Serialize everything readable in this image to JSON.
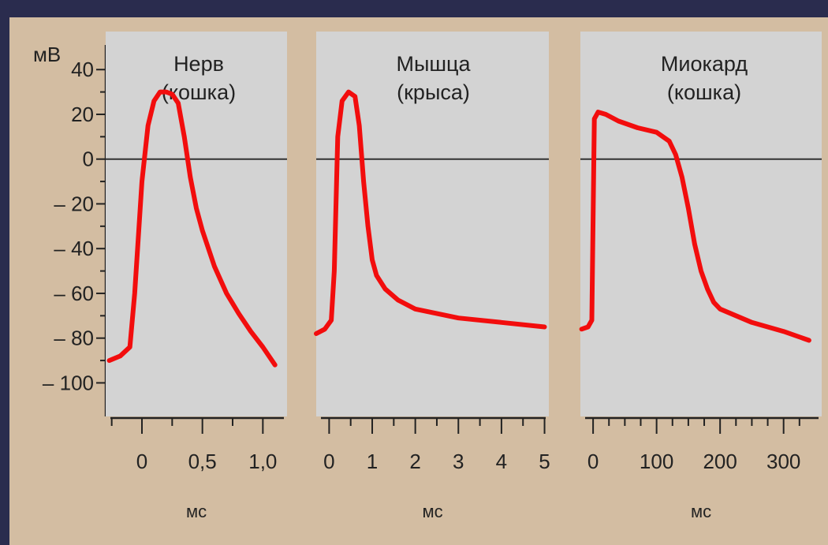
{
  "chart_data": {
    "type": "line",
    "y_unit_label": "мВ",
    "y_ticks": [
      40,
      20,
      0,
      -20,
      -40,
      -60,
      -80,
      -100
    ],
    "y_tick_labels": [
      "40",
      "20",
      "0",
      "– 20",
      "– 40",
      "– 60",
      "– 80",
      "– 100"
    ],
    "ylim": [
      -115,
      57
    ],
    "background_color": "#d3bda2",
    "panel_color": "#d3d3d3",
    "trace_color": "#f20d0d",
    "panels": [
      {
        "title_line1": "Нерв",
        "title_line2": "(кошка)",
        "xlabel": "мс",
        "xlim": [
          -0.3,
          1.2
        ],
        "x_ticks": [
          0,
          0.5,
          1.0
        ],
        "x_tick_labels": [
          "0",
          "0,5",
          "1,0"
        ],
        "x_minor_ticks": [
          -0.25,
          0.25,
          0.75
        ],
        "series": [
          {
            "x": [
              -0.27,
              -0.18,
              -0.1,
              -0.06,
              0.0,
              0.05,
              0.1,
              0.15,
              0.2,
              0.25,
              0.3,
              0.35,
              0.4,
              0.45,
              0.5,
              0.6,
              0.7,
              0.8,
              0.9,
              1.0,
              1.1
            ],
            "y": [
              -90,
              -88,
              -84,
              -60,
              -10,
              15,
              26,
              30,
              30,
              29,
              25,
              10,
              -8,
              -22,
              -32,
              -48,
              -60,
              -69,
              -77,
              -84,
              -92
            ]
          }
        ]
      },
      {
        "title_line1": "Мышца",
        "title_line2": "(крыса)",
        "xlabel": "мс",
        "xlim": [
          -0.3,
          5.1
        ],
        "x_ticks": [
          0,
          1,
          2,
          3,
          4,
          5
        ],
        "x_tick_labels": [
          "0",
          "1",
          "2",
          "3",
          "4",
          "5"
        ],
        "x_minor_ticks": [
          0.5,
          1.5,
          2.5,
          3.5,
          4.5
        ],
        "series": [
          {
            "x": [
              -0.3,
              -0.1,
              0.05,
              0.12,
              0.2,
              0.3,
              0.45,
              0.6,
              0.7,
              0.8,
              0.9,
              1.0,
              1.1,
              1.3,
              1.6,
              2.0,
              3.0,
              4.0,
              5.0
            ],
            "y": [
              -78,
              -76,
              -72,
              -50,
              10,
              26,
              30,
              28,
              15,
              -10,
              -30,
              -45,
              -52,
              -58,
              -63,
              -67,
              -71,
              -73,
              -75
            ]
          }
        ]
      },
      {
        "title_line1": "Миокард",
        "title_line2": "(кошка)",
        "xlabel": "мс",
        "xlim": [
          -20,
          360
        ],
        "x_ticks": [
          0,
          100,
          200,
          300
        ],
        "x_tick_labels": [
          "0",
          "100",
          "200",
          "300"
        ],
        "x_minor_ticks": [
          25,
          50,
          75,
          125,
          150,
          175,
          225,
          250,
          275,
          325
        ],
        "series": [
          {
            "x": [
              -18,
              -8,
              -2,
              2,
              8,
              20,
              40,
              70,
              100,
              120,
              130,
              140,
              150,
              160,
              170,
              180,
              190,
              200,
              250,
              300,
              340
            ],
            "y": [
              -76,
              -75,
              -72,
              18,
              21,
              20,
              17,
              14,
              12,
              8,
              2,
              -8,
              -22,
              -38,
              -50,
              -58,
              -64,
              -67,
              -73,
              -77,
              -81
            ]
          }
        ]
      }
    ]
  }
}
